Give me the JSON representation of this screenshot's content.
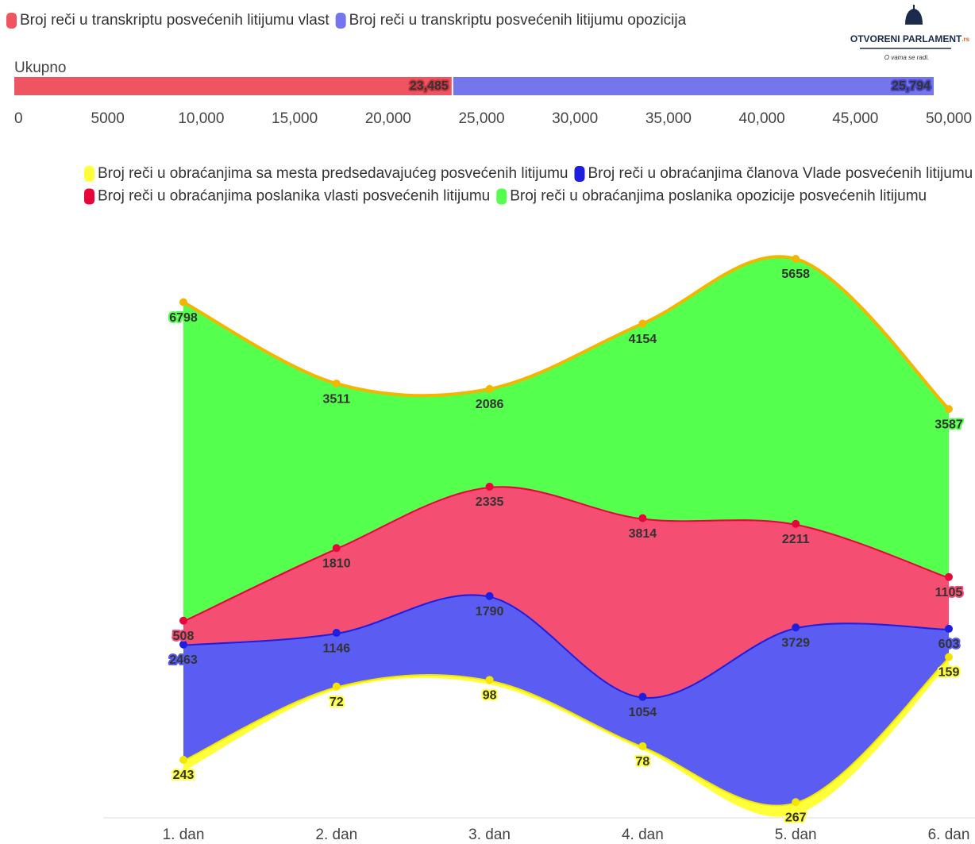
{
  "logo": {
    "title": "OTVORENI PARLAMENT",
    "suffix": ".rs",
    "tagline": "O vama se radi."
  },
  "chart_data": [
    {
      "type": "bar",
      "orientation": "horizontal",
      "stacked": true,
      "categories": [
        "Ukupno"
      ],
      "series": [
        {
          "name": "Broj reči u transkriptu posvećenih litijumu vlast",
          "color": "#ef5560",
          "label_stroke": "#c83540",
          "values": [
            23485
          ],
          "value_labels": [
            "23,485"
          ]
        },
        {
          "name": "Broj reči u transkriptu posvećenih litijumu opozicija",
          "color": "#7676ec",
          "label_stroke": "#4848c8",
          "values": [
            25794
          ],
          "value_labels": [
            "25,794"
          ]
        }
      ],
      "xlim": [
        0,
        50000
      ],
      "xticks": [
        0,
        5000,
        {
          "value": 10000,
          "label": "10,000"
        },
        {
          "value": 15000,
          "label": "15,000"
        },
        {
          "value": 20000,
          "label": "20,000"
        },
        {
          "value": 25000,
          "label": "25,000"
        },
        {
          "value": 30000,
          "label": "30,000"
        },
        {
          "value": 35000,
          "label": "35,000"
        },
        {
          "value": 40000,
          "label": "40,000"
        },
        {
          "value": 45000,
          "label": "45,000"
        },
        {
          "value": 50000,
          "label": "50,000"
        }
      ]
    },
    {
      "type": "streamgraph",
      "categories": [
        "1. dan",
        "2. dan",
        "3. dan",
        "4. dan",
        "5. dan",
        "6. dan"
      ],
      "series": [
        {
          "name": "Broj reči u obraćanjima sa mesta predsedavajućeg posvećenih litijumu",
          "color": "#ffff3a",
          "line_color": "#f2e600",
          "label_color": "#000",
          "values": [
            243,
            72,
            98,
            78,
            267,
            159
          ]
        },
        {
          "name": "Broj reči u obraćanjima članova Vlade posvećenih litijumu",
          "color": "#5a5cf2",
          "line_color": "#1e1ee0",
          "label_color": "#fff",
          "values": [
            2463,
            1146,
            1790,
            1054,
            3729,
            603
          ]
        },
        {
          "name": "Broj reči u obraćanjima poslanika vlasti posvećenih litijumu",
          "color": "#f44e72",
          "line_color": "#e8053c",
          "label_color": "#fff",
          "values": [
            508,
            1810,
            2335,
            3814,
            2211,
            1105
          ]
        },
        {
          "name": "Broj reči u obraćanjima poslanika opozicije posvećenih litijumu",
          "color": "#55ff4d",
          "line_color": "#f2b600",
          "label_color": "#000",
          "values": [
            6798,
            3511,
            2086,
            4154,
            5658,
            3587
          ]
        }
      ]
    }
  ]
}
